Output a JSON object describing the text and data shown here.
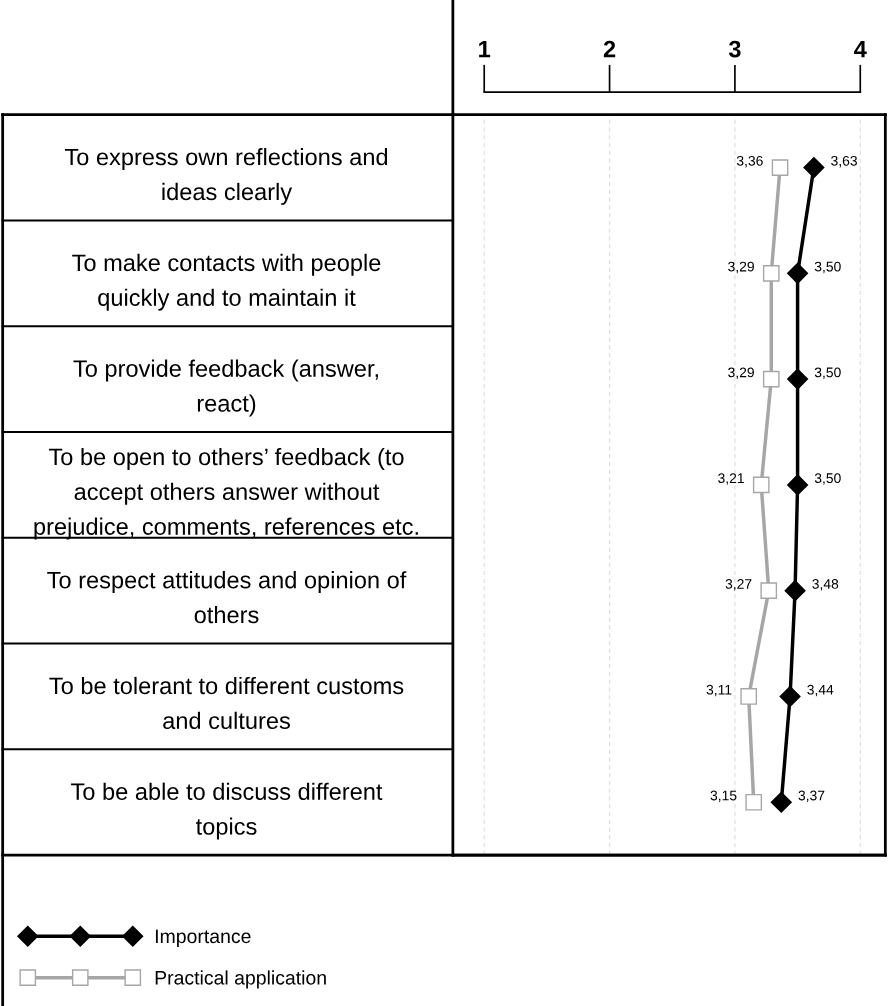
{
  "chart_data": {
    "type": "line",
    "orientation": "horizontal",
    "categories": [
      "To express own reflections and\nideas clearly",
      "To make contacts with people\nquickly and to maintain it",
      "To provide feedback (answer,\nreact)",
      "To be open to others’ feedback (to\naccept others answer without\nprejudice, comments, references etc.",
      "To respect attitudes and opinion of\nothers",
      "To be tolerant to different customs\nand cultures",
      "To be able to discuss different\ntopics"
    ],
    "series": [
      {
        "name": "Importance",
        "color": "#000000",
        "marker": "diamond",
        "values": [
          3.63,
          3.5,
          3.5,
          3.5,
          3.48,
          3.44,
          3.37
        ],
        "value_labels": [
          "3,63",
          "3,50",
          "3,50",
          "3,50",
          "3,48",
          "3,44",
          "3,37"
        ]
      },
      {
        "name": "Practical application",
        "color": "#a6a6a6",
        "marker": "square",
        "values": [
          3.36,
          3.29,
          3.29,
          3.21,
          3.27,
          3.11,
          3.15
        ],
        "value_labels": [
          "3,36",
          "3,29",
          "3,29",
          "3,21",
          "3,27",
          "3,11",
          "3,15"
        ]
      }
    ],
    "xlim": [
      0.75,
      4.2
    ],
    "xticks": [
      1,
      2,
      3,
      4
    ],
    "grid": "x",
    "legend": "bottom left",
    "line_style": "solid"
  }
}
